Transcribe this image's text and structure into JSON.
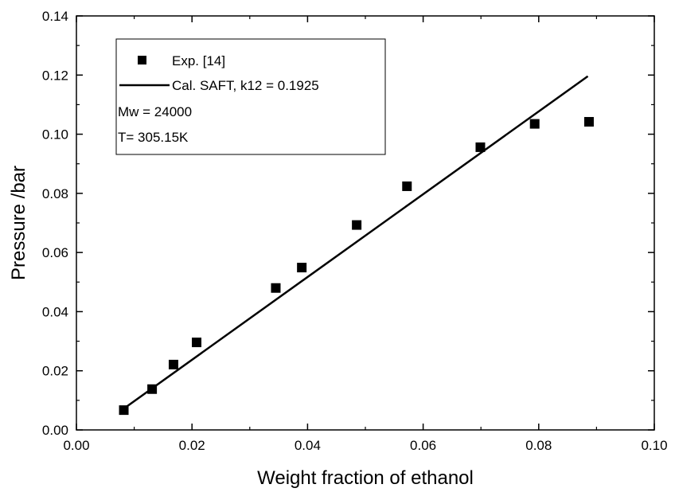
{
  "chart_data": {
    "type": "scatter",
    "xlabel": "Weight fraction of ethanol",
    "ylabel": "Pressure /bar",
    "xlim": [
      0.0,
      0.1
    ],
    "ylim": [
      0.0,
      0.14
    ],
    "x_ticks": [
      "0.00",
      "0.02",
      "0.04",
      "0.06",
      "0.08",
      "0.10"
    ],
    "y_ticks": [
      "0.00",
      "0.02",
      "0.04",
      "0.06",
      "0.08",
      "0.10",
      "0.12",
      "0.14"
    ],
    "grid": false,
    "legend_position": "top-left",
    "series": [
      {
        "name": "Exp. [14]",
        "kind": "scatter",
        "marker": "square",
        "color": "#000000",
        "x": [
          0.0082,
          0.0131,
          0.0168,
          0.0208,
          0.0345,
          0.039,
          0.0485,
          0.0572,
          0.0699,
          0.0793,
          0.0887
        ],
        "y": [
          0.0067,
          0.0138,
          0.0221,
          0.0296,
          0.048,
          0.0549,
          0.0693,
          0.0824,
          0.0956,
          0.1035,
          0.1042
        ]
      },
      {
        "name": "Cal. SAFT, k12 = 0.1925",
        "kind": "line",
        "color": "#000000",
        "x": [
          0.0082,
          0.0885
        ],
        "y": [
          0.0072,
          0.1196
        ]
      }
    ],
    "annotations": [
      "Mw = 24000",
      "T= 305.15K"
    ]
  }
}
